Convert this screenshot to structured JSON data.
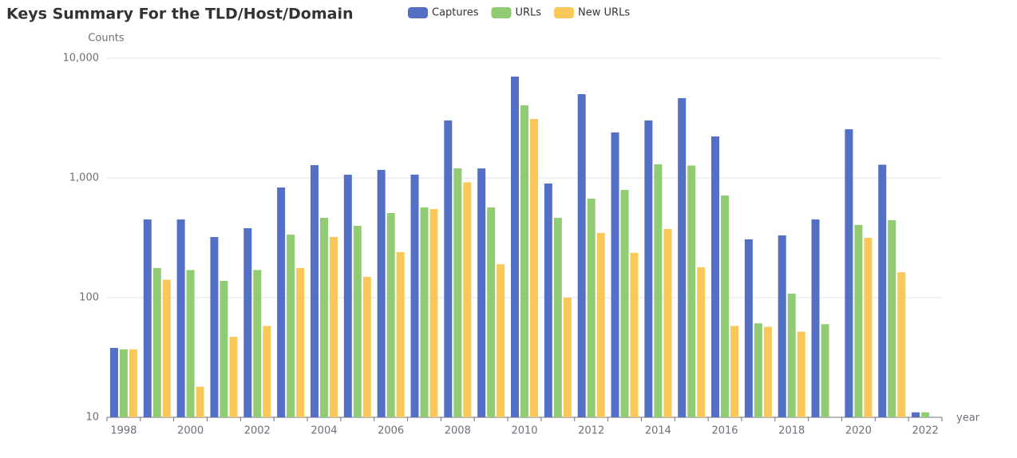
{
  "chart_data": {
    "type": "bar",
    "title": "Keys Summary For the TLD/Host/Domain",
    "y_axis_label": "Counts",
    "x_axis_label": "year",
    "log_scale": true,
    "grid": true,
    "legend": "top",
    "categories": [
      "1998",
      null,
      "2000",
      null,
      "2002",
      null,
      "2004",
      null,
      "2006",
      null,
      "2008",
      null,
      "2010",
      null,
      "2012",
      null,
      "2014",
      null,
      "2016",
      null,
      "2018",
      null,
      "2020",
      null,
      "2022"
    ],
    "series": [
      {
        "name": "Captures",
        "color": "#5470c6",
        "values": [
          38,
          450,
          450,
          321,
          380,
          832,
          1279,
          1064,
          1167,
          1066,
          3020,
          1200,
          7030,
          898,
          5010,
          2400,
          3020,
          4640,
          2220,
          307,
          331,
          450,
          2550,
          1290,
          11
        ]
      },
      {
        "name": "URLs",
        "color": "#91cc75",
        "values": [
          37,
          177,
          170,
          138,
          170,
          336,
          464,
          398,
          509,
          567,
          1202,
          567,
          4040,
          464,
          671,
          794,
          1300,
          1270,
          713,
          61,
          108,
          60,
          405,
          444,
          11
        ]
      },
      {
        "name": "New URLs",
        "color": "#fac858",
        "values": [
          37,
          141,
          18,
          47,
          58,
          177,
          321,
          149,
          240,
          550,
          920,
          190,
          3110,
          100,
          347,
          237,
          374,
          179,
          58,
          57,
          52,
          null,
          316,
          163,
          null
        ]
      }
    ],
    "ylim": [
      10,
      10000
    ],
    "yticks": [
      10,
      100,
      {
        "value": 1000,
        "label": "1,000"
      },
      {
        "value": 10000,
        "label": "10,000"
      }
    ]
  }
}
